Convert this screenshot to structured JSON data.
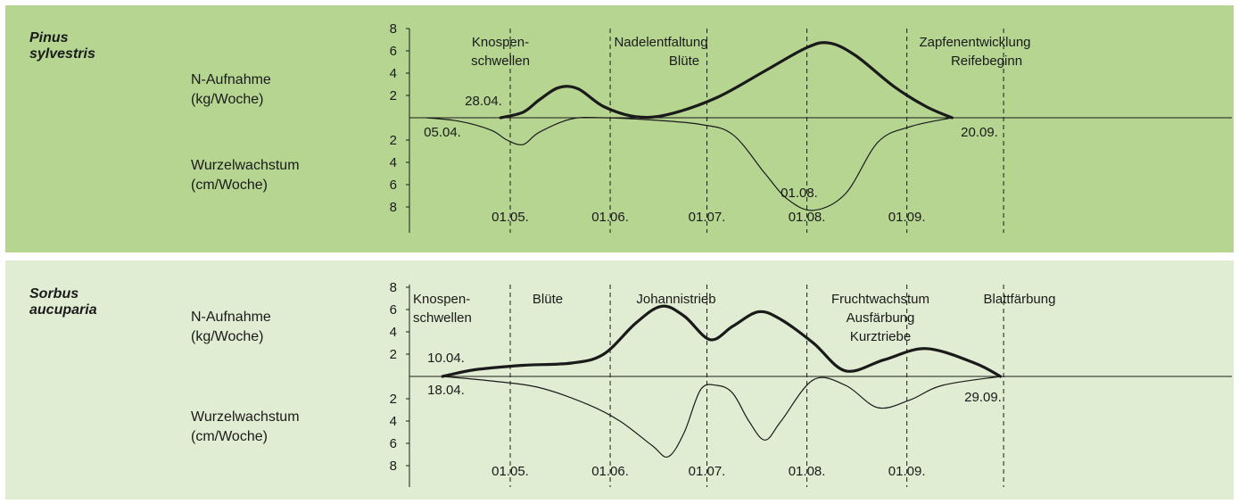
{
  "panels": [
    {
      "species_line1": "Pinus",
      "species_line2": "sylvestris",
      "n_label_line1": "N-Aufnahme",
      "n_label_line2": "(kg/Woche)",
      "root_label_line1": "Wurzelwachstum",
      "root_label_line2": "(cm/Woche)"
    },
    {
      "species_line1": "Sorbus",
      "species_line2": "aucuparia",
      "n_label_line1": "N-Aufnahme",
      "n_label_line2": "(kg/Woche)",
      "root_label_line1": "Wurzelwachstum",
      "root_label_line2": "(cm/Woche)"
    }
  ],
  "colors": {
    "panel1_bg": "#b5d591",
    "panel2_bg": "#e1edd2",
    "line": "#1a1a1a"
  },
  "chart_data": [
    {
      "type": "line",
      "x_unit": "day of year",
      "month_ticks": [
        {
          "label": "01.05.",
          "x": 121
        },
        {
          "label": "01.06.",
          "x": 152
        },
        {
          "label": "01.07.",
          "x": 182
        },
        {
          "label": "01.08.",
          "x": 213
        },
        {
          "label": "01.09.",
          "x": 244
        }
      ],
      "upper_yticks": [
        "2",
        "4",
        "6",
        "8"
      ],
      "lower_yticks": [
        "2",
        "4",
        "6",
        "8"
      ],
      "ylim": [
        0,
        8
      ],
      "series": [
        {
          "name": "N-Aufnahme",
          "x": [
            118,
            125,
            130,
            136,
            142,
            150,
            160,
            170,
            185,
            200,
            213,
            220,
            228,
            240,
            250,
            258
          ],
          "y": [
            0,
            0.5,
            1.6,
            2.7,
            2.6,
            1,
            0.1,
            0.3,
            1.8,
            4.2,
            6.3,
            6.7,
            5.6,
            2.8,
            1,
            0
          ]
        },
        {
          "name": "Wurzelwachstum",
          "x": [
            95,
            105,
            115,
            120,
            125,
            130,
            140,
            150,
            165,
            180,
            190,
            200,
            207,
            215,
            225,
            235,
            245,
            258
          ],
          "y": [
            0,
            0.3,
            1.1,
            2,
            2.4,
            1.3,
            0.1,
            0,
            0.2,
            0.6,
            1.5,
            5,
            7.3,
            8.3,
            6.8,
            2.2,
            0.8,
            0
          ]
        }
      ],
      "phases": [
        {
          "text": [
            "Knospen-",
            "schwellen"
          ]
        },
        {
          "text": [
            "Nadelentfaltung",
            "Blüte"
          ]
        },
        {
          "text": [
            "Zapfenentwicklung",
            "Reifebeginn"
          ]
        }
      ],
      "date_labels": [
        "28.04.",
        "05.04.",
        "20.09.",
        "01.08."
      ]
    },
    {
      "type": "line",
      "x_unit": "day of year",
      "month_ticks": [
        {
          "label": "01.05.",
          "x": 121
        },
        {
          "label": "01.06.",
          "x": 152
        },
        {
          "label": "01.07.",
          "x": 182
        },
        {
          "label": "01.08.",
          "x": 213
        },
        {
          "label": "01.09.",
          "x": 244
        }
      ],
      "upper_yticks": [
        "2",
        "4",
        "6",
        "8"
      ],
      "lower_yticks": [
        "2",
        "4",
        "6",
        "8"
      ],
      "ylim": [
        0,
        8
      ],
      "series": [
        {
          "name": "N-Aufnahme",
          "x": [
            100,
            110,
            125,
            140,
            150,
            160,
            168,
            175,
            183,
            190,
            198,
            205,
            215,
            225,
            237,
            250,
            265,
            273
          ],
          "y": [
            0,
            0.6,
            1,
            1.2,
            2,
            4.8,
            6.3,
            5.4,
            3.3,
            4.5,
            5.8,
            5.1,
            3,
            0.5,
            1.5,
            2.5,
            1.2,
            0
          ]
        },
        {
          "name": "Wurzelwachstum",
          "x": [
            100,
            115,
            130,
            145,
            155,
            165,
            170,
            175,
            180,
            185,
            190,
            195,
            200,
            205,
            215,
            225,
            235,
            245,
            255,
            273
          ],
          "y": [
            0,
            0.4,
            1,
            2.5,
            4,
            6.2,
            7.2,
            5,
            1.2,
            0.8,
            1.5,
            4,
            5.7,
            4,
            0.3,
            0.8,
            2.8,
            2.1,
            0.8,
            0
          ]
        }
      ],
      "phases": [
        {
          "text": [
            "Knospen-",
            "schwellen"
          ]
        },
        {
          "text": [
            "Blüte"
          ]
        },
        {
          "text": [
            "Johannistrieb"
          ]
        },
        {
          "text": [
            "Fruchtwachstum",
            "Ausfärbung",
            "Kurztriebe"
          ]
        },
        {
          "text": [
            "Blattfärbung"
          ]
        }
      ],
      "date_labels": [
        "10.04.",
        "18.04.",
        "29.09."
      ]
    }
  ]
}
